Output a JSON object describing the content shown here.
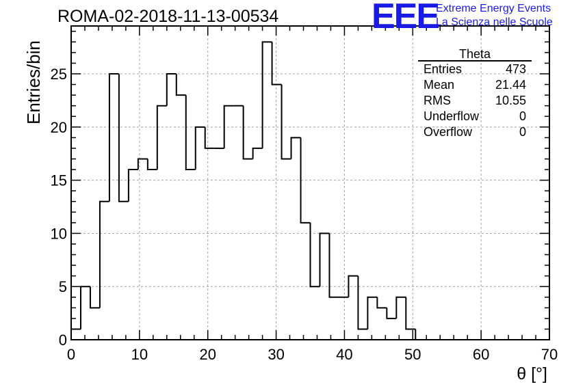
{
  "chart_data": {
    "type": "bar",
    "title": "ROMA-02-2018-11-13-00534",
    "xlabel": "θ [°]",
    "ylabel": "Entries/bin",
    "xlim": [
      0,
      70
    ],
    "ylim": [
      0,
      29.5
    ],
    "grid": true,
    "bin_width": 1.4,
    "x_bin_lefts": [
      0,
      1.4,
      2.8,
      4.2,
      5.6,
      7.0,
      8.4,
      9.8,
      11.2,
      12.6,
      14.0,
      15.4,
      16.8,
      18.2,
      19.6,
      21.0,
      22.4,
      23.8,
      25.2,
      26.6,
      28.0,
      29.4,
      30.8,
      32.2,
      33.6,
      35.0,
      36.4,
      37.8,
      39.2,
      40.6,
      42.0,
      43.4,
      44.8,
      46.2,
      47.6,
      49.0
    ],
    "values": [
      1,
      5,
      3,
      13,
      25,
      13,
      16,
      17,
      16,
      22,
      25,
      23,
      16,
      20,
      18,
      18,
      22,
      22,
      17,
      18,
      28,
      24,
      17,
      19,
      11,
      5,
      10,
      4,
      4,
      6,
      1,
      4,
      3,
      2,
      4,
      1
    ],
    "x_ticks": [
      0,
      10,
      20,
      30,
      40,
      50,
      60,
      70
    ],
    "y_ticks": [
      0,
      5,
      10,
      15,
      20,
      25
    ]
  },
  "stats_box": {
    "name": "Theta",
    "rows": [
      {
        "label": "Entries",
        "value": "473"
      },
      {
        "label": "Mean",
        "value": "21.44"
      },
      {
        "label": "RMS",
        "value": "10.55"
      },
      {
        "label": "Underflow",
        "value": "0"
      },
      {
        "label": "Overflow",
        "value": "0"
      }
    ]
  },
  "logo": {
    "mark": "EEE",
    "line1": "Extreme Energy Events",
    "line2": "La Scienza nelle Scuole",
    "color": "#1a1ae6"
  }
}
